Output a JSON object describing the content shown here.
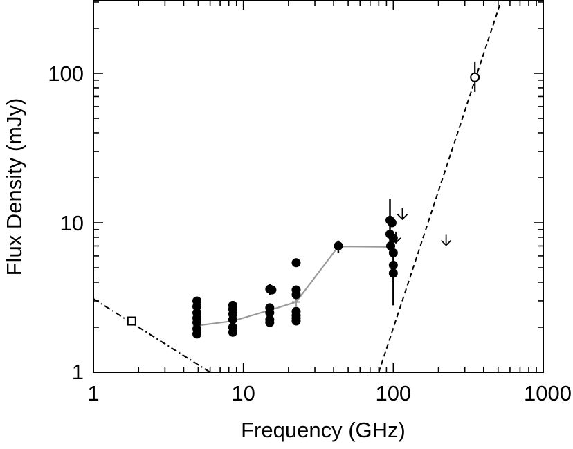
{
  "chart_data": {
    "type": "scatter",
    "xlabel": "Frequency (GHz)",
    "ylabel": "Flux Density (mJy)",
    "xscale": "log",
    "yscale": "log",
    "xlim": [
      1,
      1000
    ],
    "ylim": [
      1,
      300
    ],
    "xticks": [
      {
        "value": 1,
        "label": "1"
      },
      {
        "value": 10,
        "label": "10"
      },
      {
        "value": 100,
        "label": "100"
      },
      {
        "value": 1000,
        "label": "1000"
      }
    ],
    "yticks": [
      {
        "value": 1,
        "label": "1"
      },
      {
        "value": 10,
        "label": "10"
      },
      {
        "value": 100,
        "label": "100"
      }
    ],
    "filled_points": [
      {
        "x": 4.9,
        "y": 3.0,
        "err": [
          2.85,
          3.15
        ]
      },
      {
        "x": 4.9,
        "y": 2.75
      },
      {
        "x": 4.9,
        "y": 2.5
      },
      {
        "x": 4.9,
        "y": 2.3
      },
      {
        "x": 4.9,
        "y": 2.15
      },
      {
        "x": 4.9,
        "y": 1.95
      },
      {
        "x": 4.9,
        "y": 1.8
      },
      {
        "x": 8.5,
        "y": 2.8,
        "err": [
          2.65,
          2.95
        ]
      },
      {
        "x": 8.5,
        "y": 2.65
      },
      {
        "x": 8.5,
        "y": 2.45
      },
      {
        "x": 8.5,
        "y": 2.25
      },
      {
        "x": 8.5,
        "y": 2.0
      },
      {
        "x": 8.5,
        "y": 1.85
      },
      {
        "x": 15,
        "y": 3.6,
        "err": [
          3.3,
          3.9
        ]
      },
      {
        "x": 15.5,
        "y": 3.55
      },
      {
        "x": 15,
        "y": 2.7
      },
      {
        "x": 15,
        "y": 2.5
      },
      {
        "x": 15,
        "y": 2.25
      },
      {
        "x": 15,
        "y": 2.15
      },
      {
        "x": 22.5,
        "y": 5.4
      },
      {
        "x": 22.5,
        "y": 3.55,
        "err": [
          3.3,
          3.8
        ]
      },
      {
        "x": 22.5,
        "y": 3.3
      },
      {
        "x": 22.5,
        "y": 2.55
      },
      {
        "x": 22.5,
        "y": 2.4
      },
      {
        "x": 22.5,
        "y": 2.3
      },
      {
        "x": 22.5,
        "y": 2.2
      },
      {
        "x": 43,
        "y": 7.0,
        "err": [
          6.3,
          7.6
        ]
      },
      {
        "x": 95,
        "y": 10.4,
        "err": [
          7.0,
          14.5
        ]
      },
      {
        "x": 98,
        "y": 10.0
      },
      {
        "x": 95,
        "y": 8.4
      },
      {
        "x": 100,
        "y": 7.9
      },
      {
        "x": 96,
        "y": 7.0
      },
      {
        "x": 100,
        "y": 6.3
      },
      {
        "x": 100,
        "y": 5.2
      },
      {
        "x": 100,
        "y": 4.6,
        "err": [
          2.8,
          6.5
        ]
      }
    ],
    "open_square": {
      "x": 1.8,
      "y": 2.2
    },
    "open_circle": {
      "x": 350,
      "y": 94,
      "err": [
        75,
        120
      ]
    },
    "upper_limits": [
      {
        "x": 115,
        "y": 11.5
      },
      {
        "x": 104,
        "y": 8.0
      },
      {
        "x": 225,
        "y": 7.7
      }
    ],
    "mean_line": [
      {
        "x": 4.9,
        "y": 2.05
      },
      {
        "x": 8.5,
        "y": 2.2
      },
      {
        "x": 15,
        "y": 2.6
      },
      {
        "x": 22.5,
        "y": 2.95
      },
      {
        "x": 43,
        "y": 6.95
      },
      {
        "x": 95,
        "y": 6.9
      }
    ],
    "dashdot_line": [
      {
        "x": 1,
        "y": 3.1
      },
      {
        "x": 6,
        "y": 1
      }
    ],
    "dashed_line": [
      {
        "x": 80,
        "y": 1
      },
      {
        "x": 520,
        "y": 300
      }
    ],
    "colors": {
      "points": "#000000",
      "mean_line": "#9a9a9a",
      "axes": "#000000"
    }
  }
}
